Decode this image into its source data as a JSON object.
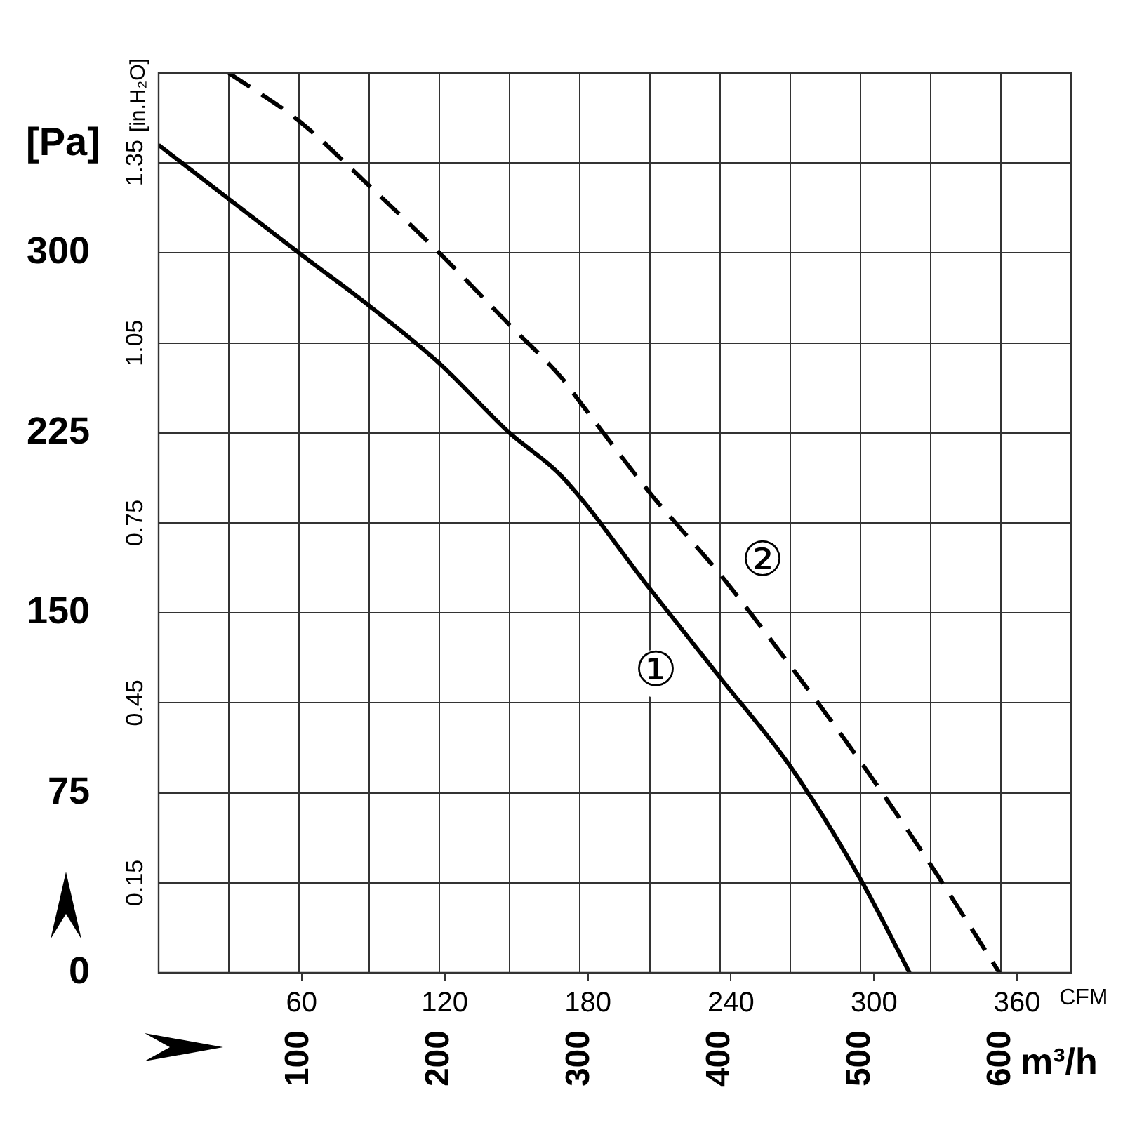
{
  "chart_data": {
    "type": "line",
    "xlabel": "m³/h",
    "x2label": "CFM",
    "ylabel": "[Pa]",
    "y2label": "[in.H₂O]",
    "xlim": [
      0,
      650
    ],
    "xticks": [
      {
        "value": 50,
        "label": null
      },
      100,
      {
        "value": 150,
        "label": null
      },
      200,
      {
        "value": 250,
        "label": null
      },
      300,
      {
        "value": 350,
        "label": null
      },
      400,
      {
        "value": 450,
        "label": null
      },
      500,
      {
        "value": 550,
        "label": null
      },
      600
    ],
    "x2lim": [
      0,
      382.6
    ],
    "x2ticks": [
      60,
      120,
      180,
      240,
      300,
      360
    ],
    "ylim": [
      0,
      375
    ],
    "yticks": [
      0,
      75,
      150,
      225,
      300
    ],
    "y2lim": [
      0,
      1.5
    ],
    "y2ticks": [
      0.15,
      0.45,
      0.75,
      1.05,
      1.35
    ],
    "grid": true,
    "marker": "none",
    "series": [
      {
        "name": "①",
        "color": "#000000",
        "line_style": "solid",
        "x": [
          0,
          100,
          150,
          200,
          250,
          287,
          350,
          400,
          450,
          500,
          535
        ],
        "values": [
          345,
          300,
          278,
          254,
          225,
          207,
          160,
          123,
          86,
          39,
          0
        ]
      },
      {
        "name": "②",
        "color": "#000000",
        "line_style": "dashed",
        "x": [
          50,
          100,
          150,
          200,
          250,
          287,
          300,
          350,
          400,
          450,
          500,
          550,
          599
        ],
        "values": [
          375,
          355,
          328,
          300,
          270,
          248,
          238,
          200,
          166,
          128,
          88,
          45,
          0
        ]
      }
    ]
  }
}
